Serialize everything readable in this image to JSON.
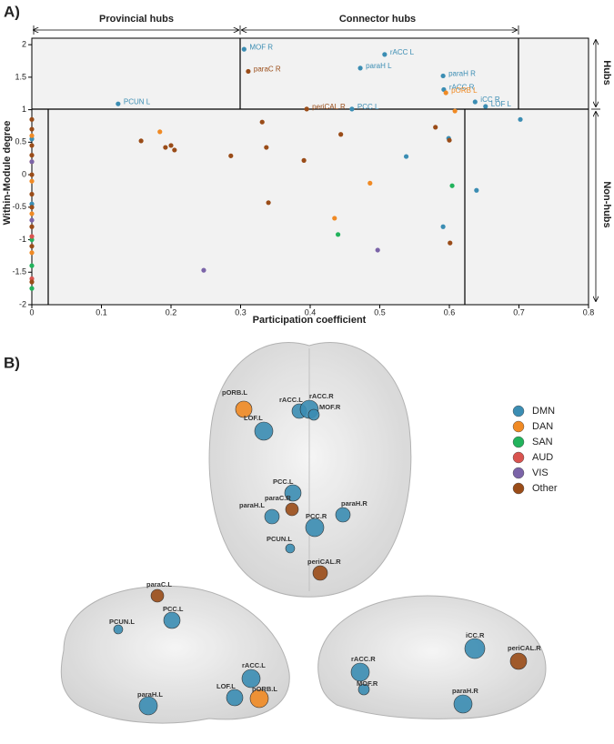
{
  "chart_data": {
    "type": "scatter",
    "panel_label": "A)",
    "x_label": "Participation coefficient",
    "y_label": "Within-Module degree",
    "annotations": {
      "provincial": "Provincial hubs",
      "connector": "Connector hubs",
      "hubs": "Hubs",
      "nonhubs": "Non-hubs"
    },
    "xlim": [
      0,
      0.8
    ],
    "xticks": [
      0,
      0.1,
      0.2,
      0.3,
      0.4,
      0.5,
      0.6,
      0.7,
      0.8
    ],
    "ylim": [
      -2,
      2.1
    ],
    "yticks": [
      -2,
      -1.5,
      -1,
      -0.5,
      0,
      0.5,
      1,
      1.5,
      2
    ],
    "series": [
      {
        "name": "DMN",
        "color": "#3b8db3",
        "x": [
          0.305,
          0.507,
          0.472,
          0.591,
          0.592,
          0.637,
          0.652,
          0.46,
          0.124,
          0.538,
          0.591,
          0.639,
          0.702,
          0.599,
          0,
          0
        ],
        "y": [
          1.93,
          1.85,
          1.64,
          1.52,
          1.31,
          1.12,
          1.05,
          1.01,
          1.09,
          0.28,
          -0.8,
          -0.24,
          0.85,
          0.56,
          0.55,
          -0.45
        ],
        "labels": [
          "MOF R",
          "rACC L",
          "paraH L",
          "paraH R",
          "rACC R",
          "iCC R",
          "LOF L",
          "PCC L",
          "PCUN L",
          null,
          null,
          null,
          null,
          null,
          null,
          null
        ]
      },
      {
        "name": "DAN",
        "color": "#f08a24",
        "x": [
          0.595,
          0.184,
          0.486,
          0.435,
          0.608,
          0,
          0,
          0,
          0,
          0
        ],
        "y": [
          1.26,
          0.66,
          -0.13,
          -0.67,
          0.98,
          0.6,
          0.2,
          -0.1,
          -0.6,
          -1.2
        ],
        "labels": [
          "pORB L",
          null,
          null,
          null,
          null,
          null,
          null,
          null,
          null,
          null
        ]
      },
      {
        "name": "SAN",
        "color": "#22b35c",
        "x": [
          0.44,
          0.604,
          0,
          0,
          0
        ],
        "y": [
          -0.92,
          -0.17,
          -1.0,
          -1.4,
          -1.75
        ],
        "labels": [
          null,
          null,
          null,
          null,
          null
        ]
      },
      {
        "name": "AUD",
        "color": "#d9534f",
        "x": [
          0,
          0
        ],
        "y": [
          -0.95,
          -1.6
        ],
        "labels": [
          null,
          null
        ]
      },
      {
        "name": "VIS",
        "color": "#7b64a8",
        "x": [
          0.247,
          0.497,
          0,
          0
        ],
        "y": [
          -1.47,
          -1.16,
          0.2,
          -0.7
        ],
        "labels": [
          null,
          null,
          null,
          null
        ]
      },
      {
        "name": "Other",
        "color": "#9a4c18",
        "x": [
          0.311,
          0.395,
          0.331,
          0.157,
          0.2,
          0.192,
          0.205,
          0.286,
          0.337,
          0.391,
          0.444,
          0.58,
          0.6,
          0.34,
          0.601,
          0,
          0,
          0,
          0,
          0,
          0,
          0,
          0,
          0,
          0
        ],
        "y": [
          1.59,
          1.01,
          0.81,
          0.52,
          0.45,
          0.42,
          0.38,
          0.29,
          0.42,
          0.22,
          0.62,
          0.73,
          0.53,
          -0.43,
          -1.05,
          0.85,
          0.7,
          0.45,
          0.3,
          0,
          -0.3,
          -0.5,
          -0.8,
          -1.1,
          -1.65
        ],
        "labels": [
          "paraC R",
          "periCAL R",
          null,
          null,
          null,
          null,
          null,
          null,
          null,
          null,
          null,
          null,
          null,
          null,
          null,
          null,
          null,
          null,
          null,
          null,
          null,
          null,
          null,
          null,
          null
        ]
      }
    ]
  },
  "panel_b": {
    "label": "B)",
    "views": [
      {
        "nodes": [
          "pORB.L",
          "rACC.L",
          "rACC.R",
          "MOF.R",
          "LOF.L",
          "PCC.L",
          "paraC.R",
          "paraH.L",
          "paraH.R",
          "PCC.R",
          "PCUN.L",
          "periCAL.R"
        ]
      },
      {
        "nodes": [
          "paraC.L",
          "PCUN.L",
          "PCC.L",
          "rACC.L",
          "pORB.L",
          "LOF.L",
          "paraH.L"
        ]
      },
      {
        "nodes": [
          "rACC.R",
          "MOF.R",
          "iCC.R",
          "periCAL.R",
          "paraH.R"
        ]
      }
    ]
  }
}
